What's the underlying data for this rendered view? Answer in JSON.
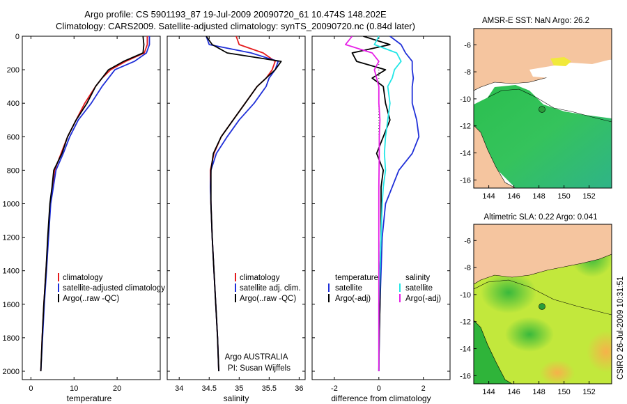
{
  "title": {
    "line1": "Argo profile: CS 5901193_87 19-Jul-2009 20090720_61 10.474S 148.202E",
    "line2": "Climatology: CARS2009. Satellite-adjusted climatology: synTS_20090720.nc (0.84d later)"
  },
  "depth_ticks": [
    "0",
    "200",
    "400",
    "600",
    "800",
    "1000",
    "1200",
    "1400",
    "1600",
    "1800",
    "2000"
  ],
  "colors": {
    "red": "#e41a1c",
    "blue": "#1f2fd8",
    "black": "#000000",
    "cyan": "#22e6e6",
    "magenta": "#e61ee6",
    "land": "#f5c59f",
    "sea_green": "#3ec653",
    "dot": "#2a9d3a"
  },
  "chart_data": [
    {
      "type": "line",
      "panel": "temperature",
      "xlabel": "temperature",
      "ylabel": "",
      "xlim": [
        -2,
        30
      ],
      "ylim": [
        2050,
        0
      ],
      "xticks": [
        "0",
        "10",
        "20"
      ],
      "depth": [
        0,
        50,
        100,
        150,
        200,
        250,
        300,
        400,
        500,
        600,
        700,
        800,
        900,
        1000,
        1200,
        1400,
        1600,
        1800,
        2000
      ],
      "series": [
        {
          "name": "climatology",
          "color": "red",
          "values": [
            27,
            27,
            26.3,
            22,
            18.5,
            16.5,
            15,
            12.5,
            10.5,
            8.5,
            7.0,
            5.5,
            5.0,
            4.5,
            4.0,
            3.5,
            3.0,
            2.6,
            2.3
          ]
        },
        {
          "name": "satellite-adjusted climatology",
          "color": "blue",
          "values": [
            27.5,
            27.5,
            26.8,
            24,
            19.5,
            18.0,
            16.5,
            14,
            11,
            9.0,
            7.5,
            5.8,
            5.2,
            4.6,
            4.1,
            3.6,
            3.1,
            2.7,
            2.3
          ]
        },
        {
          "name": "Argo(..raw -QC)",
          "color": "black",
          "values": [
            26,
            26.2,
            26,
            21.5,
            18,
            16.5,
            15,
            13,
            10.5,
            8.5,
            7.2,
            5.3,
            4.9,
            4.4,
            3.9,
            3.5,
            3.0,
            2.6,
            2.3
          ]
        }
      ],
      "legend": [
        "climatology",
        "satellite-adjusted climatology",
        "Argo(..raw -QC)"
      ]
    },
    {
      "type": "line",
      "panel": "salinity",
      "xlabel": "salinity",
      "ylabel": "",
      "xlim": [
        33.8,
        36.1
      ],
      "ylim": [
        2050,
        0
      ],
      "xticks": [
        "34",
        "34.5",
        "35",
        "35.5",
        "36"
      ],
      "depth": [
        0,
        50,
        100,
        150,
        200,
        250,
        300,
        400,
        500,
        600,
        700,
        800,
        900,
        1000,
        1200,
        1400,
        1600,
        1800,
        2000
      ],
      "series": [
        {
          "name": "climatology",
          "color": "red",
          "values": [
            34.95,
            35.0,
            35.4,
            35.6,
            35.55,
            35.45,
            35.3,
            35.1,
            34.9,
            34.7,
            34.58,
            34.52,
            34.52,
            34.53,
            34.55,
            34.58,
            34.61,
            34.64,
            34.66
          ]
        },
        {
          "name": "satellite adj. clim.",
          "color": "blue",
          "values": [
            34.45,
            34.5,
            35.2,
            35.65,
            35.6,
            35.5,
            35.45,
            35.25,
            35.0,
            34.8,
            34.62,
            34.53,
            34.52,
            34.53,
            34.55,
            34.58,
            34.61,
            34.64,
            34.66
          ]
        },
        {
          "name": "Argo(..raw -QC)",
          "color": "black",
          "values": [
            34.45,
            34.55,
            34.8,
            35.7,
            35.6,
            35.45,
            35.3,
            35.1,
            34.9,
            34.7,
            34.57,
            34.53,
            34.53,
            34.53,
            34.55,
            34.58,
            34.61,
            34.64,
            34.66
          ]
        }
      ],
      "legend": [
        "climatology",
        "satellite adj. clim.",
        "Argo(..raw -QC)"
      ],
      "note": [
        "Argo AUSTRALIA",
        "PI: Susan Wijffels"
      ]
    },
    {
      "type": "line",
      "panel": "difference",
      "xlabel": "difference from climatology",
      "ylabel": "",
      "xlim": [
        -3,
        3.2
      ],
      "ylim": [
        2050,
        0
      ],
      "xticks": [
        "-2",
        "0",
        "2"
      ],
      "depth": [
        0,
        50,
        100,
        150,
        200,
        250,
        300,
        400,
        500,
        600,
        700,
        800,
        900,
        1000,
        1200,
        1400,
        1600,
        1800,
        2000
      ],
      "series": [
        {
          "name": "temperature satellite",
          "color": "blue",
          "values": [
            0.5,
            1.0,
            1.2,
            1.5,
            1.5,
            1.55,
            1.5,
            1.5,
            1.7,
            1.8,
            1.5,
            0.9,
            0.6,
            0.3,
            0.15,
            0.1,
            0.05,
            0.02,
            0
          ]
        },
        {
          "name": "temperature Argo(-adj)",
          "color": "black",
          "values": [
            -0.7,
            0.5,
            -1.2,
            -1.0,
            0.3,
            -0.3,
            0.2,
            0.3,
            0.5,
            0.2,
            -0.1,
            0.2,
            0.1,
            0.1,
            0.1,
            0.05,
            0.05,
            0.02,
            0
          ]
        },
        {
          "name": "salinity satellite",
          "color": "cyan",
          "values": [
            0,
            -0.2,
            0.8,
            1.0,
            0.7,
            0.6,
            0.4,
            0.5,
            0.4,
            0.3,
            0.25,
            0.3,
            0.2,
            0.15,
            0.1,
            0.05,
            0.0,
            0,
            0
          ]
        },
        {
          "name": "salinity Argo(-adj)",
          "color": "magenta",
          "values": [
            -1.2,
            -1.5,
            -0.3,
            0.0,
            -0.2,
            -0.1,
            0,
            0,
            0.05,
            0.02,
            0.02,
            0.01,
            0,
            0,
            0,
            0,
            0,
            0,
            0
          ]
        }
      ],
      "legend_headers": [
        "temperature",
        "salinity"
      ],
      "legend": [
        "satellite",
        "Argo(-adj)",
        "satellite",
        "Argo(-adj)"
      ]
    }
  ],
  "maps": [
    {
      "id": "sst",
      "title": "AMSR-E SST: NaN Argo: 26.2",
      "xticks": [
        "144",
        "146",
        "148",
        "150",
        "152"
      ],
      "yticks": [
        "-6",
        "-8",
        "-10",
        "-12",
        "-14",
        "-16"
      ]
    },
    {
      "id": "sla",
      "title": "Altimetric SLA: 0.22 Argo: 0.041",
      "xticks": [
        "144",
        "146",
        "148",
        "150",
        "152"
      ],
      "yticks": [
        "-6",
        "-8",
        "-10",
        "-12",
        "-14",
        "-16"
      ]
    }
  ],
  "side_label": "CSIRO 26-Jul-2009 10:31:51"
}
